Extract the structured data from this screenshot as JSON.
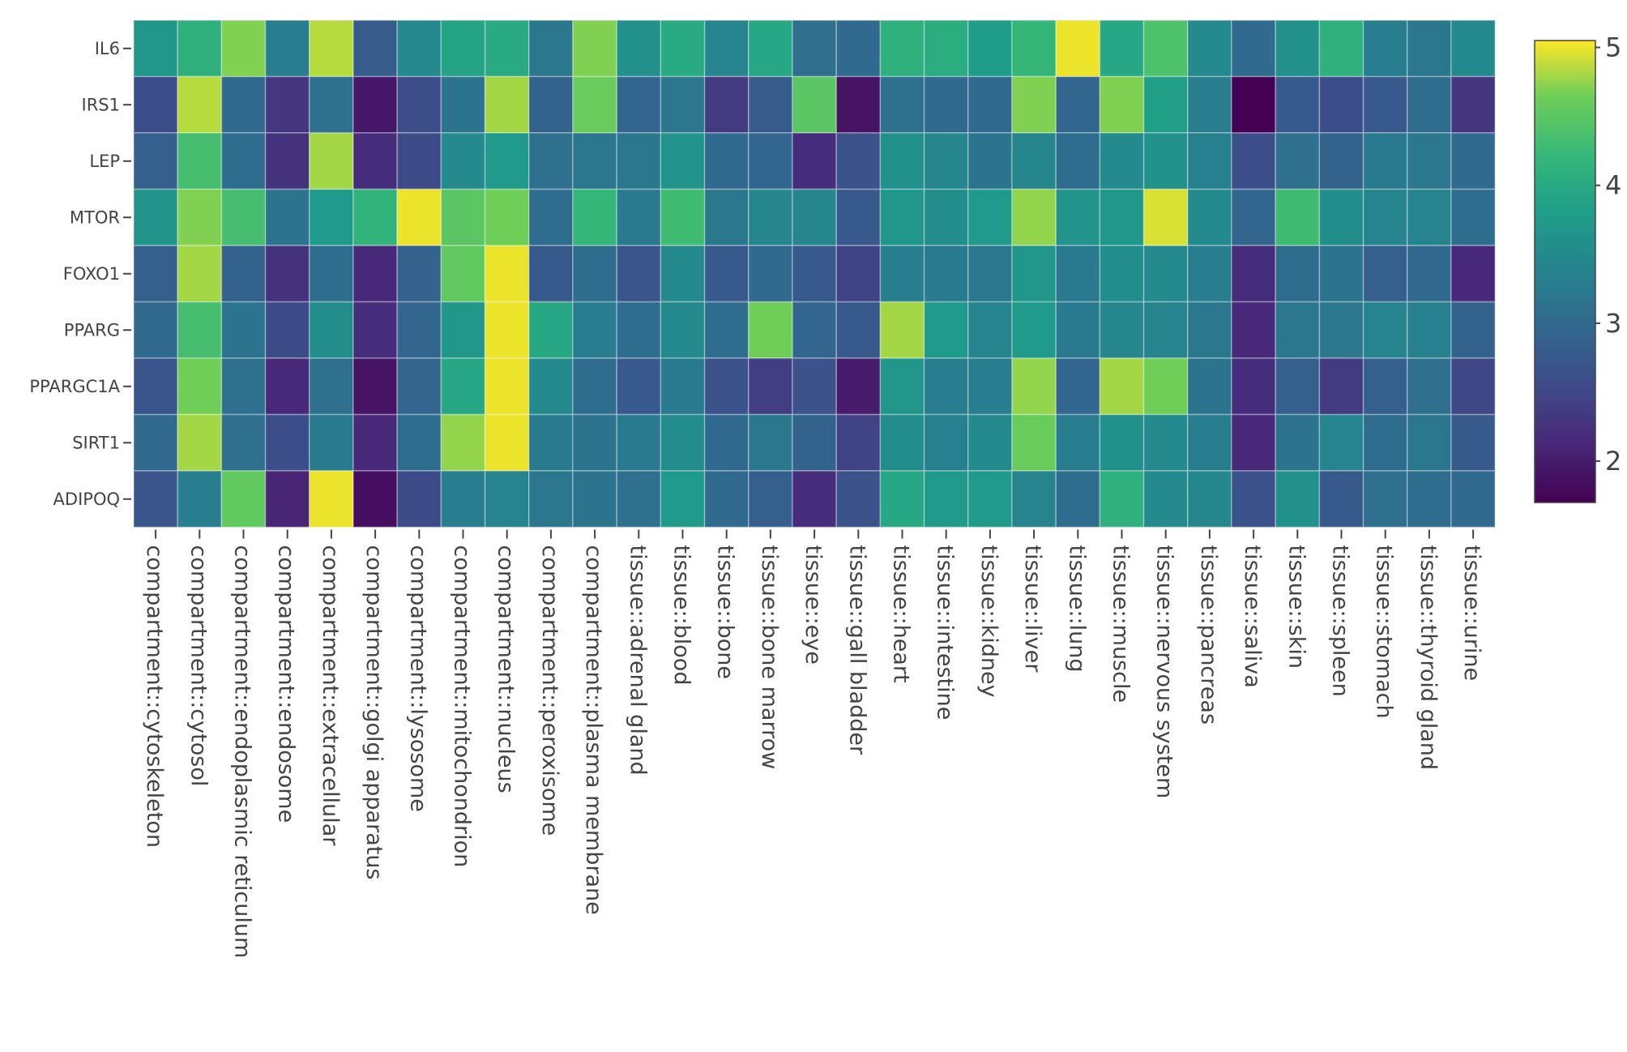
{
  "chart_data": {
    "type": "heatmap",
    "title": "",
    "xlabel": "",
    "ylabel": "",
    "colorscale": "viridis",
    "colorbar": {
      "range": [
        1.7,
        5.05
      ],
      "ticks": [
        2,
        3,
        4,
        5
      ],
      "tick_labels": [
        "2",
        "3",
        "4",
        "5"
      ]
    },
    "y": [
      "IL6",
      "IRS1",
      "LEP",
      "MTOR",
      "FOXO1",
      "PPARG",
      "PPARGC1A",
      "SIRT1",
      "ADIPOQ"
    ],
    "x": [
      "compartment::cytoskeleton",
      "compartment::cytosol",
      "compartment::endoplasmic reticulum",
      "compartment::endosome",
      "compartment::extracellular",
      "compartment::golgi apparatus",
      "compartment::lysosome",
      "compartment::mitochondrion",
      "compartment::nucleus",
      "compartment::peroxisome",
      "compartment::plasma membrane",
      "tissue::adrenal gland",
      "tissue::blood",
      "tissue::bone",
      "tissue::bone marrow",
      "tissue::eye",
      "tissue::gall bladder",
      "tissue::heart",
      "tissue::intestine",
      "tissue::kidney",
      "tissue::liver",
      "tissue::lung",
      "tissue::muscle",
      "tissue::nervous system",
      "tissue::pancreas",
      "tissue::saliva",
      "tissue::skin",
      "tissue::spleen",
      "tissue::stomach",
      "tissue::thyroid gland",
      "tissue::urine"
    ],
    "z": [
      [
        3.7,
        4.1,
        4.7,
        3.3,
        4.85,
        2.8,
        3.5,
        3.9,
        4.0,
        3.2,
        4.7,
        3.6,
        4.0,
        3.4,
        3.95,
        3.1,
        3.0,
        4.1,
        4.05,
        3.8,
        4.2,
        5.0,
        3.95,
        4.4,
        3.5,
        3.0,
        3.6,
        4.1,
        3.3,
        3.2,
        3.5
      ],
      [
        2.6,
        4.85,
        3.0,
        2.3,
        3.1,
        1.95,
        2.6,
        3.15,
        4.8,
        2.9,
        4.6,
        2.95,
        3.2,
        2.35,
        2.8,
        4.5,
        1.9,
        3.1,
        3.0,
        3.0,
        4.7,
        2.95,
        4.7,
        3.85,
        3.3,
        1.7,
        2.75,
        2.6,
        2.75,
        3.05,
        2.3
      ],
      [
        2.85,
        4.35,
        3.05,
        2.25,
        4.8,
        2.2,
        2.55,
        3.5,
        3.75,
        3.1,
        3.2,
        3.2,
        3.65,
        3.0,
        2.95,
        2.2,
        2.65,
        3.6,
        3.45,
        3.15,
        3.45,
        3.05,
        3.5,
        3.6,
        3.35,
        2.6,
        3.1,
        2.9,
        3.25,
        3.2,
        3.0
      ],
      [
        3.65,
        4.7,
        4.35,
        3.15,
        3.75,
        4.15,
        5.0,
        4.5,
        4.65,
        3.05,
        4.2,
        3.25,
        4.3,
        3.2,
        3.45,
        3.45,
        2.75,
        3.7,
        3.55,
        3.75,
        4.75,
        3.65,
        3.7,
        4.95,
        3.5,
        2.95,
        4.3,
        3.55,
        3.4,
        3.4,
        3.05
      ],
      [
        2.85,
        4.8,
        2.9,
        2.25,
        3.05,
        2.15,
        2.9,
        4.55,
        5.0,
        2.75,
        3.05,
        2.7,
        3.5,
        2.75,
        3.0,
        2.75,
        2.45,
        3.3,
        3.25,
        3.2,
        3.7,
        3.25,
        3.55,
        3.5,
        3.3,
        2.2,
        3.05,
        3.15,
        2.85,
        3.0,
        2.15
      ],
      [
        3.0,
        4.35,
        3.15,
        2.55,
        3.55,
        2.2,
        2.95,
        3.7,
        5.0,
        3.95,
        3.3,
        3.05,
        3.5,
        3.05,
        4.65,
        2.95,
        2.75,
        4.8,
        3.75,
        3.4,
        3.75,
        3.25,
        3.45,
        3.4,
        3.2,
        2.15,
        3.2,
        3.2,
        3.4,
        3.35,
        2.9
      ],
      [
        2.7,
        4.65,
        3.1,
        2.15,
        3.1,
        1.9,
        2.95,
        3.95,
        5.0,
        3.5,
        3.05,
        2.75,
        3.25,
        2.65,
        2.4,
        2.65,
        2.0,
        3.7,
        3.3,
        3.3,
        4.75,
        2.95,
        4.8,
        4.65,
        3.15,
        2.2,
        2.85,
        2.35,
        2.85,
        3.1,
        2.5
      ],
      [
        3.0,
        4.8,
        3.1,
        2.6,
        3.25,
        2.15,
        3.05,
        4.75,
        5.0,
        3.25,
        3.15,
        3.25,
        3.55,
        3.0,
        3.2,
        2.9,
        2.45,
        3.55,
        3.35,
        3.5,
        4.6,
        3.3,
        3.6,
        3.5,
        3.3,
        2.15,
        3.15,
        3.4,
        3.05,
        3.2,
        2.75
      ],
      [
        2.7,
        3.3,
        4.55,
        2.1,
        5.0,
        1.85,
        2.55,
        3.3,
        3.4,
        3.2,
        3.15,
        3.1,
        3.75,
        3.0,
        2.85,
        2.2,
        2.65,
        3.95,
        3.75,
        3.75,
        3.4,
        3.05,
        4.1,
        3.5,
        3.45,
        2.65,
        3.6,
        2.75,
        3.1,
        3.05,
        3.0
      ]
    ]
  }
}
